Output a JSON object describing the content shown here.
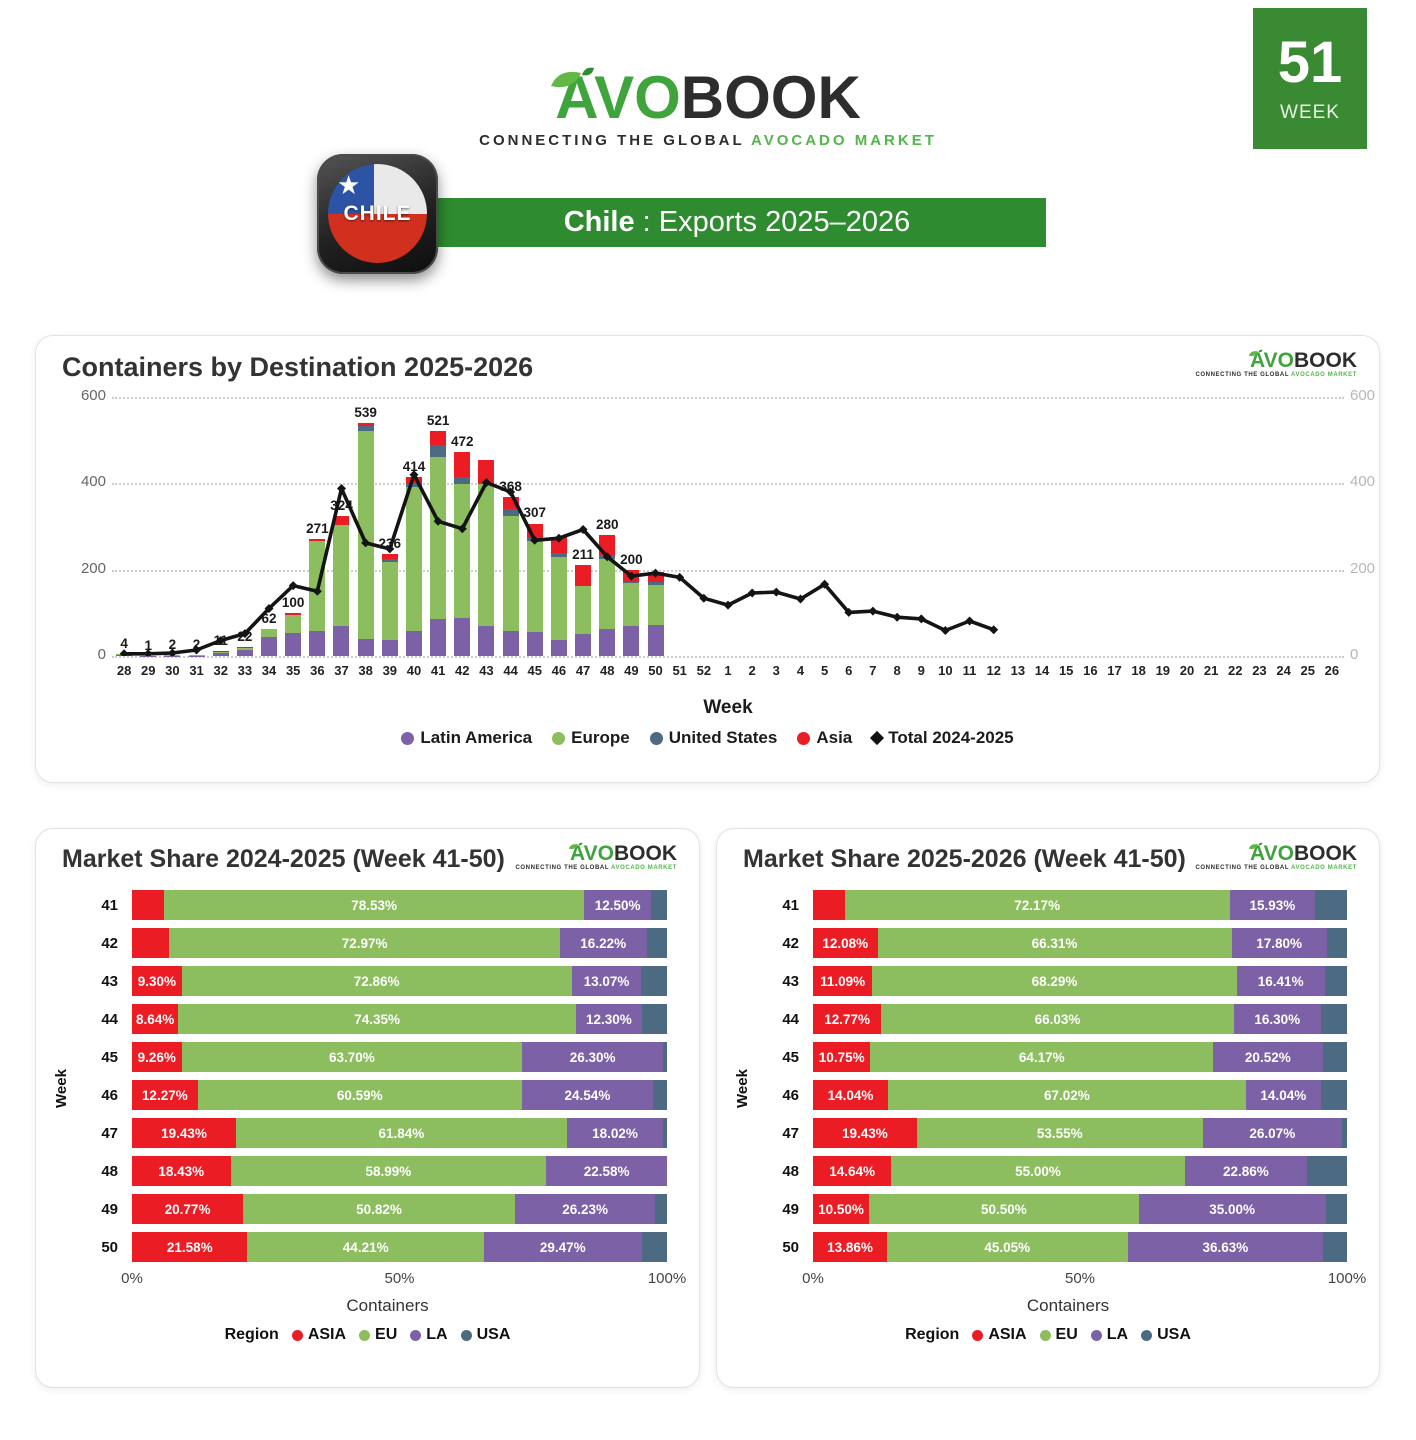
{
  "header": {
    "logo": {
      "green": "AVO",
      "dark": "BOOK",
      "tagline_dark": "CONNECTING THE GLOBAL",
      "tagline_green": "AVOCADO MARKET"
    },
    "flag": {
      "country": "CHILE"
    },
    "banner": {
      "country": "Chile",
      "rest": ": Exports 2025–2026"
    },
    "week_badge": {
      "number": "51",
      "label": "WEEK"
    }
  },
  "colors": {
    "latin_america": "#7c61a6",
    "europe": "#8cbe5f",
    "united_states": "#4c6a82",
    "asia": "#ec1c24",
    "line_total": "#141414",
    "banner_green": "#2e8b2f",
    "badge_green": "#3a8a33",
    "logo_green": "#3fa43c",
    "logo_dark": "#2d2d2d"
  },
  "chart_data": [
    {
      "id": "containers_by_destination",
      "type": "bar",
      "title": "Containers by Destination 2025-2026",
      "xlabel": "Week",
      "ylim": [
        0,
        600
      ],
      "yticks": [
        0,
        200,
        400,
        600
      ],
      "grid": "dotted-horizontal",
      "legend_position": "bottom",
      "categories": [
        "28",
        "29",
        "30",
        "31",
        "32",
        "33",
        "34",
        "35",
        "36",
        "37",
        "38",
        "39",
        "40",
        "41",
        "42",
        "43",
        "44",
        "45",
        "46",
        "47",
        "48",
        "49",
        "50",
        "51",
        "52",
        "1",
        "2",
        "3",
        "4",
        "5",
        "6",
        "7",
        "8",
        "9",
        "10",
        "11",
        "12",
        "13",
        "14",
        "15",
        "16",
        "17",
        "18",
        "19",
        "20",
        "21",
        "22",
        "23",
        "24",
        "25",
        "26"
      ],
      "series": [
        {
          "name": "Latin America",
          "key": "la",
          "color": "#7c61a6",
          "values": [
            2,
            1,
            1,
            1,
            6,
            13,
            44,
            54,
            58,
            70,
            40,
            37,
            58,
            85,
            88,
            69,
            58,
            55,
            38,
            51,
            62,
            69,
            72
          ]
        },
        {
          "name": "Europe",
          "key": "eu",
          "color": "#8cbe5f",
          "values": [
            2,
            0,
            1,
            1,
            3,
            6,
            18,
            41,
            209,
            233,
            482,
            181,
            334,
            377,
            310,
            329,
            266,
            211,
            192,
            112,
            162,
            100,
            92
          ]
        },
        {
          "name": "United States",
          "key": "us",
          "color": "#4c6a82",
          "values": [
            0,
            0,
            0,
            0,
            0,
            0,
            0,
            0,
            0,
            0,
            11,
            7,
            6,
            28,
            16,
            0,
            16,
            8,
            8,
            0,
            11,
            3,
            8
          ]
        },
        {
          "name": "Asia",
          "key": "asia",
          "color": "#ec1c24",
          "values": [
            0,
            0,
            0,
            0,
            2,
            3,
            0,
            5,
            4,
            21,
            6,
            11,
            16,
            31,
            58,
            57,
            28,
            33,
            37,
            48,
            45,
            28,
            23
          ]
        }
      ],
      "bar_total_labels": [
        "4",
        "1",
        "2",
        "2",
        "11",
        "22",
        "62",
        "100",
        "271",
        "324",
        "539",
        "236",
        "414",
        "521",
        "472",
        "",
        "368",
        "307",
        "",
        "211",
        "280",
        "200",
        ""
      ],
      "line": {
        "name": "Total 2024-2025",
        "color": "#141414",
        "start_category_index": 0,
        "values": [
          5,
          5,
          7,
          14,
          36,
          52,
          110,
          163,
          150,
          388,
          262,
          248,
          420,
          312,
          295,
          402,
          380,
          268,
          273,
          293,
          230,
          185,
          192,
          182,
          134,
          118,
          146,
          148,
          132,
          166,
          101,
          104,
          90,
          86,
          59,
          81,
          61
        ]
      }
    },
    {
      "id": "market_share_2024_2025",
      "type": "stacked_bar_h",
      "title": "Market Share 2024-2025 (Week 41-50)",
      "ylabel": "Week",
      "xlabel": "Containers",
      "xticks": [
        "0%",
        "50%",
        "100%"
      ],
      "legend_title": "Region",
      "series_names": [
        "ASIA",
        "EU",
        "LA",
        "USA"
      ],
      "series_colors": [
        "#ec1c24",
        "#8cbe5f",
        "#7c61a6",
        "#4c6a82"
      ],
      "rows": [
        {
          "week": "41",
          "values": [
            6.0,
            78.53,
            12.5,
            2.97
          ],
          "labels": [
            "",
            "78.53%",
            "12.50%",
            ""
          ]
        },
        {
          "week": "42",
          "values": [
            7.0,
            72.97,
            16.22,
            3.81
          ],
          "labels": [
            "",
            "72.97%",
            "16.22%",
            ""
          ]
        },
        {
          "week": "43",
          "values": [
            9.3,
            72.86,
            13.07,
            4.77
          ],
          "labels": [
            "9.30%",
            "72.86%",
            "13.07%",
            ""
          ]
        },
        {
          "week": "44",
          "values": [
            8.64,
            74.35,
            12.3,
            4.71
          ],
          "labels": [
            "8.64%",
            "74.35%",
            "12.30%",
            ""
          ]
        },
        {
          "week": "45",
          "values": [
            9.26,
            63.7,
            26.3,
            0.74
          ],
          "labels": [
            "9.26%",
            "63.70%",
            "26.30%",
            ""
          ]
        },
        {
          "week": "46",
          "values": [
            12.27,
            60.59,
            24.54,
            2.6
          ],
          "labels": [
            "12.27%",
            "60.59%",
            "24.54%",
            ""
          ]
        },
        {
          "week": "47",
          "values": [
            19.43,
            61.84,
            18.02,
            0.71
          ],
          "labels": [
            "19.43%",
            "61.84%",
            "18.02%",
            ""
          ]
        },
        {
          "week": "48",
          "values": [
            18.43,
            58.99,
            22.58,
            0.0
          ],
          "labels": [
            "18.43%",
            "58.99%",
            "22.58%",
            ""
          ]
        },
        {
          "week": "49",
          "values": [
            20.77,
            50.82,
            26.23,
            2.18
          ],
          "labels": [
            "20.77%",
            "50.82%",
            "26.23%",
            ""
          ]
        },
        {
          "week": "50",
          "values": [
            21.58,
            44.21,
            29.47,
            4.74
          ],
          "labels": [
            "21.58%",
            "44.21%",
            "29.47%",
            ""
          ]
        }
      ]
    },
    {
      "id": "market_share_2025_2026",
      "type": "stacked_bar_h",
      "title": "Market Share 2025-2026 (Week 41-50)",
      "ylabel": "Week",
      "xlabel": "Containers",
      "xticks": [
        "0%",
        "50%",
        "100%"
      ],
      "legend_title": "Region",
      "series_names": [
        "ASIA",
        "EU",
        "LA",
        "USA"
      ],
      "series_colors": [
        "#ec1c24",
        "#8cbe5f",
        "#7c61a6",
        "#4c6a82"
      ],
      "rows": [
        {
          "week": "41",
          "values": [
            5.9,
            72.17,
            15.93,
            6.0
          ],
          "labels": [
            "",
            "72.17%",
            "15.93%",
            ""
          ]
        },
        {
          "week": "42",
          "values": [
            12.08,
            66.31,
            17.8,
            3.81
          ],
          "labels": [
            "12.08%",
            "66.31%",
            "17.80%",
            ""
          ]
        },
        {
          "week": "43",
          "values": [
            11.09,
            68.29,
            16.41,
            4.21
          ],
          "labels": [
            "11.09%",
            "68.29%",
            "16.41%",
            ""
          ]
        },
        {
          "week": "44",
          "values": [
            12.77,
            66.03,
            16.3,
            4.9
          ],
          "labels": [
            "12.77%",
            "66.03%",
            "16.30%",
            ""
          ]
        },
        {
          "week": "45",
          "values": [
            10.75,
            64.17,
            20.52,
            4.56
          ],
          "labels": [
            "10.75%",
            "64.17%",
            "20.52%",
            ""
          ]
        },
        {
          "week": "46",
          "values": [
            14.04,
            67.02,
            14.04,
            4.9
          ],
          "labels": [
            "14.04%",
            "67.02%",
            "14.04%",
            ""
          ]
        },
        {
          "week": "47",
          "values": [
            19.43,
            53.55,
            26.07,
            0.95
          ],
          "labels": [
            "19.43%",
            "53.55%",
            "26.07%",
            ""
          ]
        },
        {
          "week": "48",
          "values": [
            14.64,
            55.0,
            22.86,
            7.5
          ],
          "labels": [
            "14.64%",
            "55.00%",
            "22.86%",
            ""
          ]
        },
        {
          "week": "49",
          "values": [
            10.5,
            50.5,
            35.0,
            4.0
          ],
          "labels": [
            "10.50%",
            "50.50%",
            "35.00%",
            ""
          ]
        },
        {
          "week": "50",
          "values": [
            13.86,
            45.05,
            36.63,
            4.46
          ],
          "labels": [
            "13.86%",
            "45.05%",
            "36.63%",
            ""
          ]
        }
      ]
    }
  ]
}
